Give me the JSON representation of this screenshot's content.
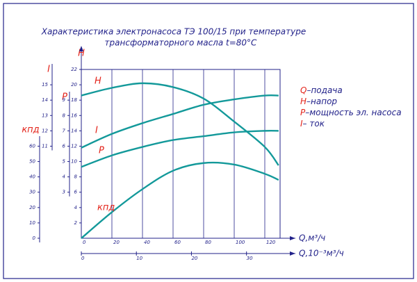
{
  "chart_data": {
    "type": "line",
    "title": [
      "Характеристика электронасоса ТЭ 100/15 при температуре",
      "трансформаторного масла t=80°С"
    ],
    "x_label": "Q,м³/ч",
    "x2_label": "Q,10⁻³м³/ч",
    "x": [
      0,
      20,
      40,
      60,
      80,
      100,
      120,
      129
    ],
    "xlim": [
      0,
      130
    ],
    "xticks": [
      0,
      20,
      40,
      60,
      80,
      100,
      120
    ],
    "x2lim": [
      0,
      36.1
    ],
    "x2ticks": [
      0,
      10,
      20,
      30
    ],
    "y_axes": [
      {
        "name": "H",
        "lim": [
          0,
          22
        ],
        "ticks": [
          2,
          4,
          6,
          8,
          10,
          12,
          14,
          16,
          18,
          20,
          22
        ]
      },
      {
        "name": "P",
        "lim": [
          0,
          11
        ],
        "ticks": [
          3,
          4,
          5,
          6,
          7,
          8,
          9
        ]
      },
      {
        "name": "I",
        "lim": [
          5,
          16
        ],
        "ticks": [
          11,
          12,
          13,
          14,
          15
        ]
      },
      {
        "name": "кпд",
        "lim": [
          0,
          110
        ],
        "ticks": [
          0,
          10,
          20,
          30,
          40,
          50,
          60
        ]
      }
    ],
    "series": [
      {
        "name": "H",
        "axis": 0,
        "color": "#13999a",
        "values": [
          18.6,
          19.6,
          20.2,
          19.7,
          18.2,
          15.2,
          11.9,
          9.5
        ]
      },
      {
        "name": "I",
        "axis": 2,
        "color": "#13999a",
        "values": [
          10.9,
          11.8,
          12.5,
          13.1,
          13.7,
          14.05,
          14.3,
          14.3
        ]
      },
      {
        "name": "P",
        "axis": 1,
        "color": "#13999a",
        "values": [
          4.65,
          5.4,
          5.95,
          6.4,
          6.65,
          6.9,
          7.0,
          7.0
        ]
      },
      {
        "name": "кпд",
        "axis": 3,
        "color": "#13999a",
        "values": [
          0,
          17,
          32,
          44,
          49,
          48,
          42,
          38
        ]
      }
    ],
    "legend": [
      {
        "symbol": "Q",
        "text": "–подача"
      },
      {
        "symbol": "H",
        "text": "–напор"
      },
      {
        "symbol": "P",
        "text": "–мощность эл. насоса"
      },
      {
        "symbol": "I",
        "text": "– ток"
      }
    ]
  }
}
